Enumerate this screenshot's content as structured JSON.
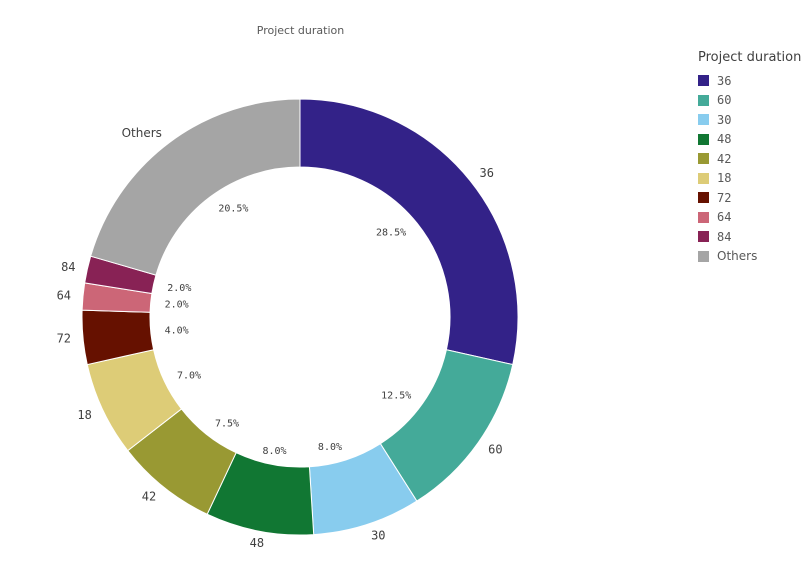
{
  "chart_data": {
    "type": "pie",
    "title": "Project duration",
    "legend_title": "Project duration",
    "legend_position": "right",
    "slices": [
      {
        "label": "36",
        "value": 28.5,
        "percent_label": "28.5%",
        "color": "#332288"
      },
      {
        "label": "60",
        "value": 12.5,
        "percent_label": "12.5%",
        "color": "#44AA99"
      },
      {
        "label": "30",
        "value": 8.0,
        "percent_label": "8.0%",
        "color": "#88CCEE"
      },
      {
        "label": "48",
        "value": 8.0,
        "percent_label": "8.0%",
        "color": "#117733"
      },
      {
        "label": "42",
        "value": 7.5,
        "percent_label": "7.5%",
        "color": "#999933"
      },
      {
        "label": "18",
        "value": 7.0,
        "percent_label": "7.0%",
        "color": "#DDCC77"
      },
      {
        "label": "72",
        "value": 4.0,
        "percent_label": "4.0%",
        "color": "#661100"
      },
      {
        "label": "64",
        "value": 2.0,
        "percent_label": "2.0%",
        "color": "#CC6677"
      },
      {
        "label": "84",
        "value": 2.0,
        "percent_label": "2.0%",
        "color": "#882255"
      },
      {
        "label": "Others",
        "value": 20.5,
        "percent_label": "20.5%",
        "color": "#A5A5A5"
      }
    ]
  }
}
